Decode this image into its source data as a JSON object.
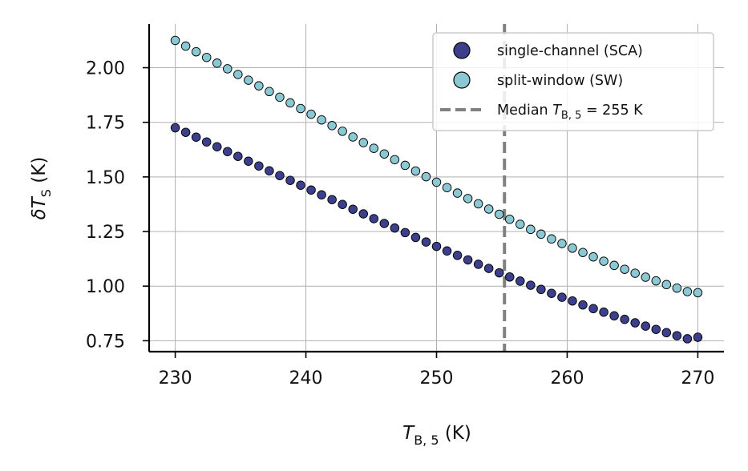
{
  "chart_data": {
    "type": "scatter",
    "xlabel": {
      "main": "T",
      "sub": "B, 5",
      "unit": " (K)"
    },
    "ylabel": {
      "main": "δT",
      "sub": "S",
      "unit": " (K)"
    },
    "xlim": [
      228,
      272
    ],
    "ylim": [
      0.7,
      2.2
    ],
    "xticks": [
      230,
      240,
      250,
      260,
      270
    ],
    "yticks": [
      0.75,
      1.0,
      1.25,
      1.5,
      1.75,
      2.0
    ],
    "xtick_labels": [
      "230",
      "240",
      "250",
      "260",
      "270"
    ],
    "ytick_labels": [
      "0.75",
      "1.00",
      "1.25",
      "1.50",
      "1.75",
      "2.00"
    ],
    "grid": true,
    "legend_position": "top-right",
    "median_line": {
      "x": 255.2,
      "label_prefix": "Median ",
      "label_math": "T",
      "label_sub": "B, 5",
      "label_suffix": " = 255 K",
      "color": "#808080"
    },
    "x": [
      230,
      230.8,
      231.6,
      232.4,
      233.2,
      234,
      234.8,
      235.6,
      236.4,
      237.2,
      238,
      238.8,
      239.6,
      240.4,
      241.2,
      242,
      242.8,
      243.6,
      244.4,
      245.2,
      246,
      246.8,
      247.6,
      248.4,
      249.2,
      250,
      250.8,
      251.6,
      252.4,
      253.2,
      254,
      254.8,
      255.6,
      256.4,
      257.2,
      258,
      258.8,
      259.6,
      260.4,
      261.2,
      262,
      262.8,
      263.6,
      264.4,
      265.2,
      266,
      266.8,
      267.6,
      268.4,
      269.2,
      270
    ],
    "series": [
      {
        "name": "single-channel (SCA)",
        "color": "#3b3f8c",
        "values": [
          1.725,
          1.704,
          1.682,
          1.66,
          1.638,
          1.616,
          1.594,
          1.572,
          1.55,
          1.528,
          1.506,
          1.484,
          1.462,
          1.44,
          1.418,
          1.396,
          1.374,
          1.352,
          1.331,
          1.309,
          1.287,
          1.266,
          1.245,
          1.223,
          1.202,
          1.182,
          1.161,
          1.141,
          1.12,
          1.1,
          1.081,
          1.061,
          1.042,
          1.023,
          1.004,
          0.985,
          0.967,
          0.949,
          0.932,
          0.914,
          0.897,
          0.881,
          0.864,
          0.848,
          0.832,
          0.817,
          0.802,
          0.787,
          0.773,
          0.759,
          0.766
        ]
      },
      {
        "name": "split-window (SW)",
        "color": "#8ac8d4",
        "values": [
          2.125,
          2.099,
          2.073,
          2.047,
          2.021,
          1.995,
          1.969,
          1.943,
          1.917,
          1.891,
          1.865,
          1.839,
          1.813,
          1.787,
          1.761,
          1.735,
          1.709,
          1.683,
          1.657,
          1.631,
          1.605,
          1.579,
          1.553,
          1.527,
          1.501,
          1.476,
          1.451,
          1.426,
          1.401,
          1.377,
          1.353,
          1.329,
          1.306,
          1.283,
          1.26,
          1.238,
          1.216,
          1.195,
          1.174,
          1.154,
          1.134,
          1.114,
          1.095,
          1.077,
          1.059,
          1.041,
          1.024,
          1.007,
          0.991,
          0.975,
          0.97
        ]
      }
    ]
  }
}
